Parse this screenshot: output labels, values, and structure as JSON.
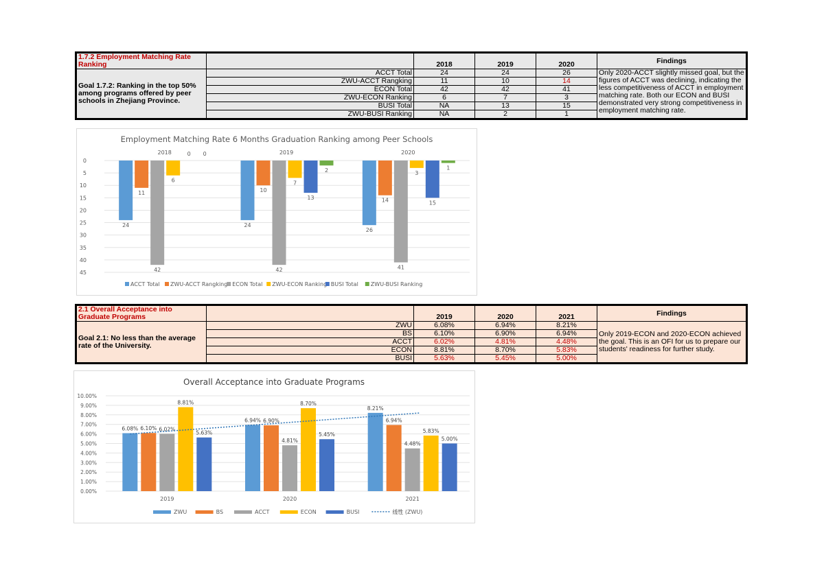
{
  "section1": {
    "title": "1.7.2 Employment Matching Rate Ranking",
    "goal": "Goal 1.7.2: Ranking in the top 50% among programs offered by peer schools in Zhejiang Province.",
    "years": [
      "2018",
      "2019",
      "2020"
    ],
    "findings_header": "Findings",
    "rows": [
      {
        "label": "ACCT Total",
        "vals": [
          "24",
          "24",
          "26"
        ]
      },
      {
        "label": "ZWU-ACCT Rangking",
        "vals": [
          "11",
          "10",
          "14"
        ]
      },
      {
        "label": "ECON Total",
        "vals": [
          "42",
          "42",
          "41"
        ]
      },
      {
        "label": "ZWU-ECON Ranking",
        "vals": [
          "6",
          "7",
          "3"
        ]
      },
      {
        "label": "BUSI Total",
        "vals": [
          "NA",
          "13",
          "15"
        ]
      },
      {
        "label": "ZWU-BUSI Ranking",
        "vals": [
          "NA",
          "2",
          "1"
        ]
      }
    ],
    "findings": "Only 2020-ACCT slightly missed goal, but the figures of ACCT was declining, indicating the less competitiveness of ACCT in employment matching rate. Both our ECON and BUSI demonstrated very strong competitiveness in employment matching rate."
  },
  "section2": {
    "title": "2.1 Overall Acceptance into Graduate Programs",
    "goal": "Goal 2.1: No less than the average rate of the University.",
    "years": [
      "2019",
      "2020",
      "2021"
    ],
    "findings_header": "Findings",
    "rows": [
      {
        "label": "ZWU",
        "vals": [
          "6.08%",
          "6.94%",
          "8.21%"
        ]
      },
      {
        "label": "BS",
        "vals": [
          "6.10%",
          "6.90%",
          "6.94%"
        ]
      },
      {
        "label": "ACCT",
        "vals": [
          "6.02%",
          "4.81%",
          "4.48%"
        ]
      },
      {
        "label": "ECON",
        "vals": [
          "8.81%",
          "8.70%",
          "5.83%"
        ]
      },
      {
        "label": "BUSI",
        "vals": [
          "5.63%",
          "5.45%",
          "5.00%"
        ]
      }
    ],
    "findings": "Only 2019-ECON and 2020-ECON achieved the goal. This is an OFI for us to prepare our students' readiness for further study."
  },
  "chart_data": [
    {
      "type": "bar",
      "title": "Employment Matching Rate 6 Months Graduation Ranking among Peer Schools",
      "categories": [
        "2018",
        "2019",
        "2020"
      ],
      "series": [
        {
          "name": "ACCT Total",
          "color": "#5b9bd5",
          "values": [
            24,
            24,
            26
          ]
        },
        {
          "name": "ZWU-ACCT Rangking",
          "color": "#ed7d31",
          "values": [
            11,
            10,
            14
          ]
        },
        {
          "name": "ECON Total",
          "color": "#a5a5a5",
          "values": [
            42,
            42,
            41
          ]
        },
        {
          "name": "ZWU-ECON Ranking",
          "color": "#ffc000",
          "values": [
            6,
            7,
            3
          ]
        },
        {
          "name": "BUSI Total",
          "color": "#4472c4",
          "values": [
            0,
            13,
            15
          ]
        },
        {
          "name": "ZWU-BUSI Ranking",
          "color": "#70ad47",
          "values": [
            0,
            2,
            1
          ]
        }
      ],
      "yticks": [
        "0",
        "5",
        "10",
        "15",
        "20",
        "25",
        "30",
        "35",
        "40",
        "45"
      ],
      "ylim": [
        0,
        45
      ],
      "reversed_axis": true,
      "legend_position": "bottom",
      "grid": true
    },
    {
      "type": "bar",
      "title": "Overall Acceptance into Graduate Programs",
      "categories": [
        "2019",
        "2020",
        "2021"
      ],
      "series": [
        {
          "name": "ZWU",
          "color": "#5b9bd5",
          "values": [
            6.08,
            6.94,
            8.21
          ],
          "labels": [
            "6.08%",
            "6.94%",
            "8.21%"
          ]
        },
        {
          "name": "BS",
          "color": "#ed7d31",
          "values": [
            6.1,
            6.9,
            6.94
          ],
          "labels": [
            "6.10%",
            "6.90%",
            "6.94%"
          ]
        },
        {
          "name": "ACCT",
          "color": "#a5a5a5",
          "values": [
            6.02,
            4.81,
            4.48
          ],
          "labels": [
            "6.02%",
            "4.81%",
            "4.48%"
          ]
        },
        {
          "name": "ECON",
          "color": "#ffc000",
          "values": [
            8.81,
            8.7,
            5.83
          ],
          "labels": [
            "8.81%",
            "8.70%",
            "5.83%"
          ]
        },
        {
          "name": "BUSI",
          "color": "#4472c4",
          "values": [
            5.63,
            5.45,
            5.0
          ],
          "labels": [
            "5.63%",
            "5.45%",
            "5.00%"
          ]
        }
      ],
      "trendline": {
        "name": "线性 (ZWU)",
        "color": "#2e75b6",
        "start": 6.0,
        "end": 8.2
      },
      "yticks": [
        "0.00%",
        "1.00%",
        "2.00%",
        "3.00%",
        "4.00%",
        "5.00%",
        "6.00%",
        "7.00%",
        "8.00%",
        "9.00%",
        "10.00%"
      ],
      "ylim": [
        0,
        10
      ],
      "legend_position": "bottom",
      "grid": true
    }
  ]
}
